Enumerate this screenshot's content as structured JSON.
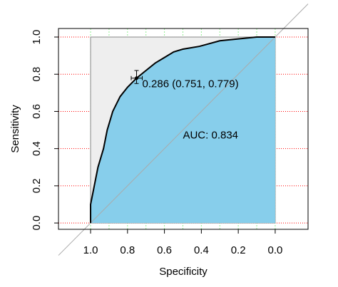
{
  "chart_data": {
    "type": "roc",
    "x_label": "Specificity",
    "y_label": "Sensitivity",
    "x": [
      1.0,
      1.0,
      0.98,
      0.96,
      0.93,
      0.91,
      0.88,
      0.84,
      0.8,
      0.751,
      0.7,
      0.65,
      0.6,
      0.55,
      0.5,
      0.41,
      0.3,
      0.2,
      0.1,
      0.0
    ],
    "values": [
      0.0,
      0.1,
      0.2,
      0.3,
      0.4,
      0.5,
      0.6,
      0.68,
      0.73,
      0.779,
      0.82,
      0.86,
      0.89,
      0.92,
      0.935,
      0.95,
      0.98,
      0.99,
      1.0,
      1.0
    ],
    "line_color": "#000000",
    "fill_color": "#87ceeb",
    "background_color": "#eeeeee",
    "diagonal_color": "#aaaaaa",
    "xlim": [
      1.174,
      -0.178
    ],
    "ylim": [
      -0.034,
      1.046
    ],
    "xticks": [
      {
        "value": 1.0,
        "label": "1.0"
      },
      {
        "value": 0.8,
        "label": "0.8"
      },
      {
        "value": 0.6,
        "label": "0.6"
      },
      {
        "value": 0.4,
        "label": "0.4"
      },
      {
        "value": 0.2,
        "label": "0.2"
      },
      {
        "value": 0.0,
        "label": "0.0"
      }
    ],
    "yticks": [
      {
        "value": 0.0,
        "label": "0.0"
      },
      {
        "value": 0.2,
        "label": "0.2"
      },
      {
        "value": 0.4,
        "label": "0.4"
      },
      {
        "value": 0.6,
        "label": "0.6"
      },
      {
        "value": 0.8,
        "label": "0.8"
      },
      {
        "value": 1.0,
        "label": "1.0"
      }
    ],
    "xgrid": [
      1.0,
      0.9,
      0.8,
      0.7,
      0.6,
      0.5,
      0.4,
      0.3,
      0.2,
      0.1,
      0.0
    ],
    "xgrid_color": "#90ee90",
    "ygrid_color": "#ff0000",
    "threshold": {
      "specificity": 0.751,
      "sensitivity": 0.779,
      "label": "0.286 (0.751, 0.779)",
      "specificity_ci": [
        0.78,
        0.72
      ],
      "sensitivity_ci": [
        0.75,
        0.82
      ]
    },
    "auc_label": "AUC: 0.834"
  }
}
